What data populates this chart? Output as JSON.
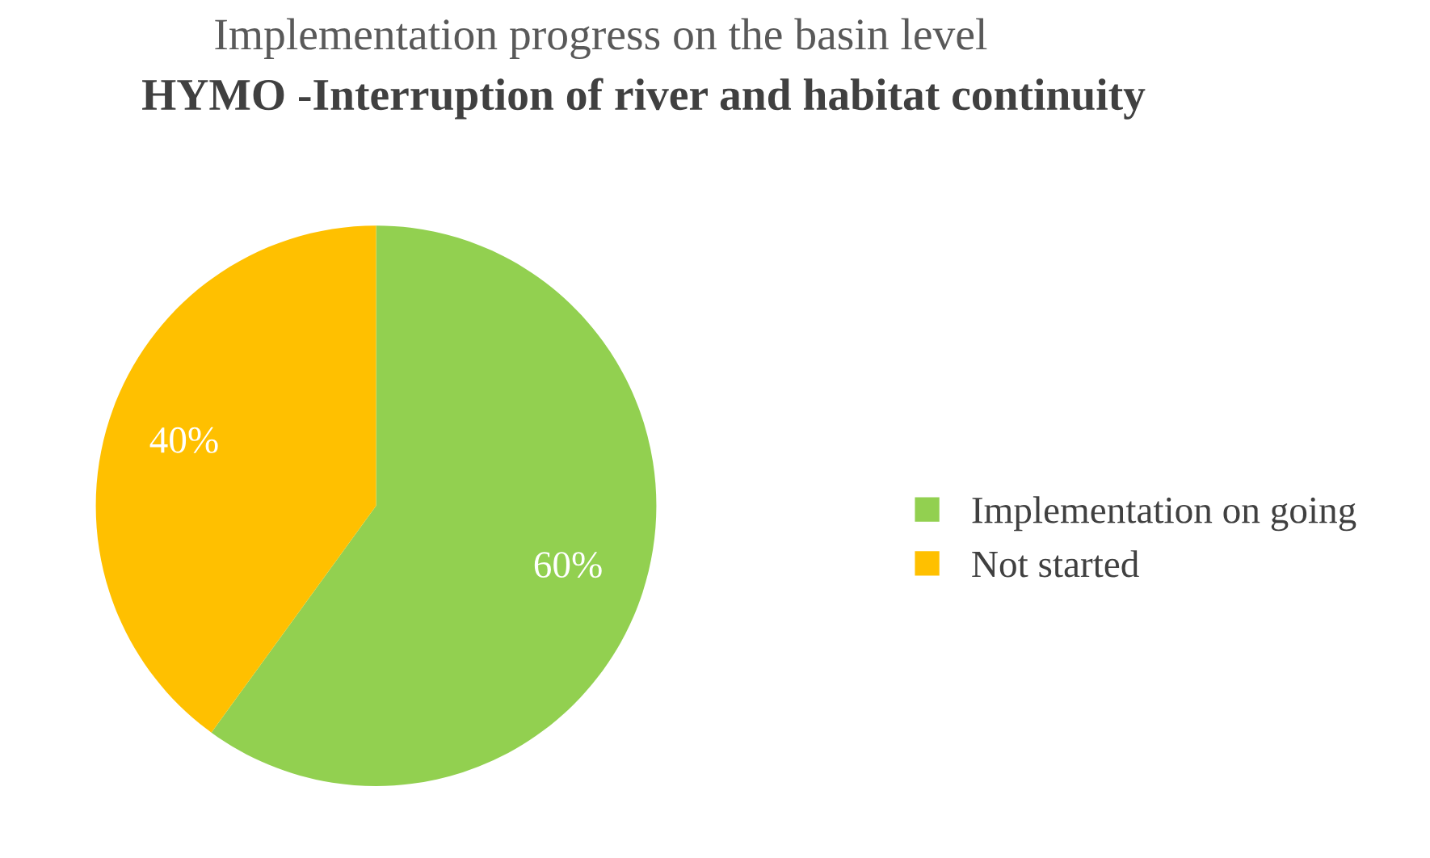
{
  "chart_data": {
    "type": "pie",
    "title": "Implementation progress on the basin level",
    "subtitle": "HYMO -Interruption of river and habitat continuity",
    "categories": [
      "Implementation on going",
      "Not started"
    ],
    "values": [
      60,
      40
    ],
    "value_labels": [
      "60%",
      "40%"
    ],
    "colors": [
      "#92d050",
      "#ffc000"
    ],
    "legend": "right"
  }
}
